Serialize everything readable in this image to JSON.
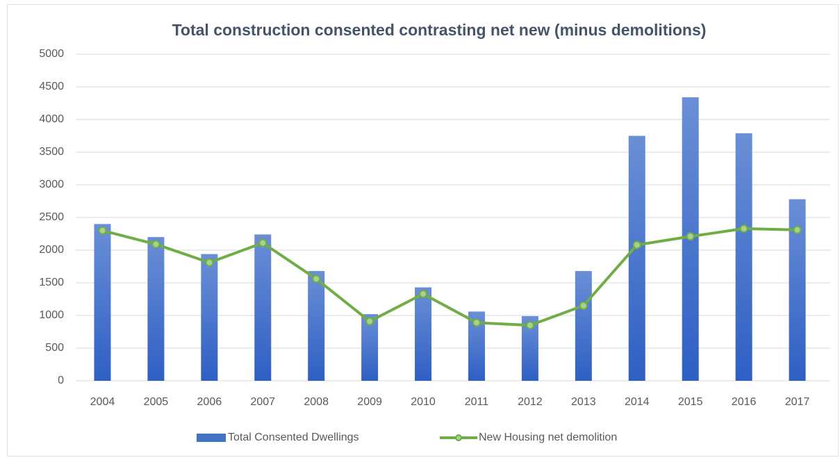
{
  "chart_data": {
    "type": "bar",
    "title": "Total construction consented contrasting net new (minus demolitions)",
    "categories": [
      "2004",
      "2005",
      "2006",
      "2007",
      "2008",
      "2009",
      "2010",
      "2011",
      "2012",
      "2013",
      "2014",
      "2015",
      "2016",
      "2017"
    ],
    "series": [
      {
        "name": "Total Consented Dwellings",
        "type": "bar",
        "color": "#4472c4",
        "values": [
          2400,
          2200,
          1940,
          2240,
          1680,
          1020,
          1430,
          1060,
          990,
          1680,
          3750,
          4340,
          3790,
          2780
        ]
      },
      {
        "name": "New Housing net demolition",
        "type": "line",
        "color": "#70ad47",
        "values": [
          2300,
          2090,
          1810,
          2110,
          1560,
          910,
          1330,
          890,
          850,
          1150,
          2080,
          2210,
          2330,
          2310
        ]
      }
    ],
    "ylim": [
      0,
      5000
    ],
    "yticks": [
      0,
      500,
      1000,
      1500,
      2000,
      2500,
      3000,
      3500,
      4000,
      4500,
      5000
    ],
    "grid": true,
    "legend": "bottom"
  }
}
